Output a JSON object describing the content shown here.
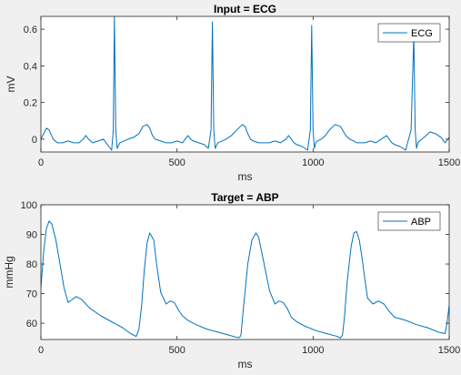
{
  "figure": {
    "background": "#f0f0f0",
    "axes_bg": "#ffffff",
    "line_color": "#0072bd"
  },
  "chart_data": [
    {
      "type": "line",
      "title": "Input = ECG",
      "xlabel": "ms",
      "ylabel": "mV",
      "xlim": [
        0,
        1500
      ],
      "ylim": [
        -0.07,
        0.67
      ],
      "xticks": [
        0,
        500,
        1000,
        1500
      ],
      "yticks": [
        0,
        0.2,
        0.4,
        0.6
      ],
      "xtick_labels": [
        "0",
        "500",
        "1000",
        "1500"
      ],
      "ytick_labels": [
        "0",
        "0.2",
        "0.4",
        "0.6"
      ],
      "grid": false,
      "legend": {
        "position": "top-right",
        "entries": [
          "ECG"
        ]
      },
      "series": [
        {
          "name": "ECG",
          "color": "#0072bd",
          "x": [
            0,
            10,
            20,
            30,
            45,
            60,
            80,
            100,
            120,
            140,
            155,
            165,
            175,
            190,
            210,
            230,
            250,
            260,
            266,
            270,
            275,
            280,
            290,
            305,
            320,
            340,
            360,
            375,
            390,
            400,
            410,
            420,
            440,
            460,
            480,
            500,
            520,
            530,
            540,
            550,
            560,
            580,
            600,
            615,
            625,
            630,
            635,
            640,
            650,
            665,
            680,
            700,
            720,
            740,
            750,
            760,
            770,
            780,
            800,
            820,
            840,
            860,
            880,
            900,
            910,
            920,
            930,
            940,
            960,
            980,
            990,
            995,
            1000,
            1005,
            1010,
            1015,
            1030,
            1045,
            1060,
            1080,
            1100,
            1120,
            1135,
            1150,
            1160,
            1170,
            1190,
            1210,
            1230,
            1250,
            1270,
            1280,
            1290,
            1300,
            1320,
            1340,
            1360,
            1370,
            1375,
            1380,
            1385,
            1390,
            1400,
            1415,
            1430,
            1450,
            1470,
            1485,
            1500
          ],
          "y": [
            0.0,
            0.03,
            0.06,
            0.05,
            0.0,
            -0.02,
            -0.02,
            -0.01,
            -0.02,
            -0.02,
            0.0,
            0.02,
            0.0,
            -0.02,
            -0.01,
            0.0,
            -0.04,
            -0.06,
            0.05,
            0.67,
            0.05,
            -0.05,
            -0.02,
            -0.01,
            0.0,
            0.01,
            0.03,
            0.07,
            0.08,
            0.06,
            0.02,
            0.0,
            -0.01,
            -0.02,
            -0.02,
            -0.01,
            -0.02,
            0.0,
            0.02,
            0.0,
            -0.01,
            -0.02,
            -0.03,
            -0.05,
            0.05,
            0.64,
            0.05,
            -0.05,
            -0.02,
            -0.01,
            0.0,
            0.02,
            0.05,
            0.08,
            0.07,
            0.03,
            0.0,
            -0.01,
            -0.02,
            -0.02,
            -0.02,
            -0.01,
            -0.02,
            0.0,
            0.02,
            0.0,
            -0.02,
            -0.03,
            -0.04,
            -0.06,
            0.05,
            0.62,
            0.05,
            -0.05,
            -0.02,
            -0.01,
            0.0,
            0.02,
            0.05,
            0.08,
            0.07,
            0.02,
            0.0,
            -0.01,
            -0.02,
            -0.02,
            -0.02,
            -0.01,
            -0.02,
            0.0,
            0.02,
            0.0,
            -0.02,
            -0.03,
            -0.04,
            -0.06,
            0.05,
            0.57,
            0.05,
            -0.05,
            -0.02,
            -0.01,
            0.0,
            0.02,
            0.04,
            0.03,
            0.01,
            -0.02,
            0.01
          ]
        }
      ]
    },
    {
      "type": "line",
      "title": "Target = ABP",
      "xlabel": "ms",
      "ylabel": "mmHg",
      "xlim": [
        0,
        1500
      ],
      "ylim": [
        54.5,
        100
      ],
      "xticks": [
        0,
        500,
        1000,
        1500
      ],
      "yticks": [
        60,
        70,
        80,
        90,
        100
      ],
      "xtick_labels": [
        "0",
        "500",
        "1000",
        "1500"
      ],
      "ytick_labels": [
        "60",
        "70",
        "80",
        "90",
        "100"
      ],
      "grid": false,
      "legend": {
        "position": "top-right",
        "entries": [
          "ABP"
        ]
      },
      "series": [
        {
          "name": "ABP",
          "color": "#0072bd",
          "x": [
            0,
            10,
            20,
            30,
            40,
            55,
            70,
            85,
            100,
            115,
            130,
            150,
            180,
            220,
            260,
            300,
            330,
            350,
            360,
            370,
            380,
            390,
            400,
            415,
            425,
            440,
            460,
            475,
            490,
            505,
            520,
            540,
            570,
            610,
            650,
            690,
            720,
            730,
            735,
            745,
            760,
            775,
            790,
            800,
            820,
            840,
            860,
            875,
            890,
            905,
            920,
            940,
            970,
            1010,
            1050,
            1090,
            1100,
            1108,
            1115,
            1125,
            1140,
            1150,
            1160,
            1170,
            1180,
            1190,
            1200,
            1220,
            1240,
            1260,
            1280,
            1300,
            1340,
            1380,
            1420,
            1460,
            1485,
            1492,
            1500
          ],
          "y": [
            72,
            84,
            92,
            94.5,
            93.5,
            88,
            80,
            72,
            67,
            68,
            69,
            68,
            65,
            62.5,
            60.5,
            58.5,
            56.5,
            55.5,
            58,
            66,
            78,
            87,
            90.5,
            88,
            80,
            70.5,
            66.5,
            67.5,
            67,
            64.5,
            62.5,
            61,
            59.5,
            58,
            57,
            56,
            55.2,
            55.2,
            56,
            66,
            80,
            88,
            90.5,
            89,
            80,
            71,
            66.5,
            67.5,
            67,
            65,
            62,
            60.5,
            59,
            57.5,
            56.5,
            55.5,
            55,
            56,
            62,
            74,
            86,
            90.5,
            91,
            88,
            82,
            75,
            68.5,
            66.5,
            67.5,
            66.5,
            64,
            62,
            61,
            59.5,
            58.5,
            57,
            56.5,
            60,
            66
          ]
        }
      ]
    }
  ]
}
